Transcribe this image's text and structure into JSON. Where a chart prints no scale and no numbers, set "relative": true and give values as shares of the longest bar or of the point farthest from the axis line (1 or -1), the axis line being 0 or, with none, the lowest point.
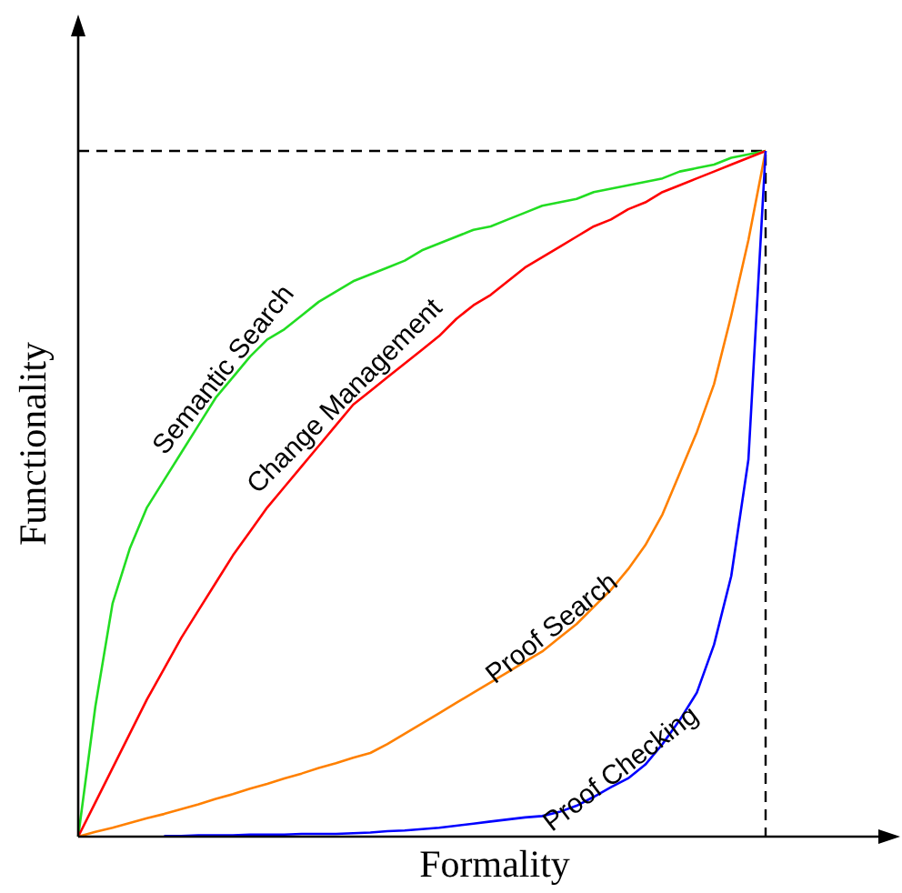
{
  "chart_data": {
    "type": "line",
    "relative": true,
    "xlabel": "Formality",
    "ylabel": "Functionality",
    "categories": [
      null,
      null,
      null,
      null,
      null,
      null,
      null,
      null,
      null,
      null,
      null,
      null,
      null,
      null,
      null,
      null,
      null,
      null,
      null,
      null,
      null,
      null,
      null,
      null,
      null,
      null,
      null,
      null,
      null,
      null,
      null,
      null,
      null,
      null,
      null,
      null,
      null,
      null,
      null,
      null,
      null
    ],
    "series": [
      {
        "name": "Semantic Search",
        "color": "#22dd22",
        "values": [
          0,
          0.19,
          0.34,
          0.42,
          0.48,
          0.52,
          0.56,
          0.6,
          0.64,
          0.67,
          0.7,
          0.725,
          0.74,
          0.76,
          0.78,
          0.795,
          0.81,
          0.82,
          0.83,
          0.84,
          0.855,
          0.865,
          0.875,
          0.885,
          0.89,
          0.9,
          0.91,
          0.92,
          0.925,
          0.93,
          0.94,
          0.945,
          0.95,
          0.955,
          0.96,
          0.97,
          0.975,
          0.98,
          0.99,
          0.995,
          1
        ]
      },
      {
        "name": "Change Management",
        "color": "#ff0000",
        "values": [
          0,
          0.05,
          0.1,
          0.15,
          0.2,
          0.245,
          0.29,
          0.33,
          0.37,
          0.41,
          0.445,
          0.48,
          0.51,
          0.54,
          0.57,
          0.6,
          0.63,
          0.65,
          0.67,
          0.69,
          0.71,
          0.73,
          0.755,
          0.775,
          0.79,
          0.81,
          0.83,
          0.845,
          0.86,
          0.875,
          0.89,
          0.9,
          0.915,
          0.925,
          0.94,
          0.95,
          0.96,
          0.97,
          0.98,
          0.99,
          1
        ]
      },
      {
        "name": "Proof Search",
        "color": "#ff8000",
        "values": [
          0,
          0.007,
          0.013,
          0.02,
          0.027,
          0.033,
          0.04,
          0.047,
          0.055,
          0.062,
          0.07,
          0.077,
          0.085,
          0.092,
          0.1,
          0.107,
          0.115,
          0.122,
          0.135,
          0.15,
          0.165,
          0.18,
          0.195,
          0.21,
          0.225,
          0.24,
          0.255,
          0.27,
          0.29,
          0.31,
          0.335,
          0.36,
          0.39,
          0.425,
          0.47,
          0.53,
          0.59,
          0.66,
          0.76,
          0.87,
          1
        ]
      },
      {
        "name": "Proof Checking",
        "color": "#0000ff",
        "values": [
          null,
          null,
          null,
          null,
          null,
          0.001,
          0.001,
          0.002,
          0.002,
          0.002,
          0.003,
          0.003,
          0.003,
          0.004,
          0.004,
          0.004,
          0.005,
          0.006,
          0.008,
          0.009,
          0.011,
          0.013,
          0.016,
          0.019,
          0.022,
          0.025,
          0.028,
          0.03,
          0.036,
          0.045,
          0.058,
          0.072,
          0.085,
          0.105,
          0.135,
          0.17,
          0.21,
          0.28,
          0.38,
          0.55,
          1
        ]
      }
    ]
  }
}
